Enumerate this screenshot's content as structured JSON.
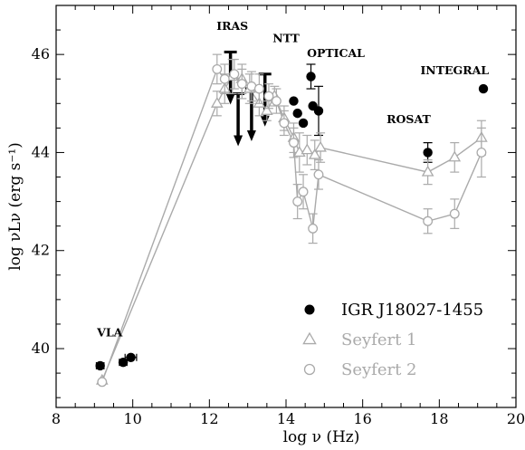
{
  "chart_data": {
    "type": "scatter",
    "xlabel": "log ν  (Hz)",
    "ylabel": "log νLν (erg s⁻¹)",
    "xlim": [
      8,
      20
    ],
    "ylim": [
      38.8,
      47
    ],
    "x_ticks": [
      8,
      10,
      12,
      14,
      16,
      18,
      20
    ],
    "y_ticks": [
      40,
      42,
      44,
      46
    ],
    "legend_position": "bottom-right",
    "colors": {
      "igr": "#000000",
      "seyfert": "#aaaaaa",
      "axes": "#000000"
    },
    "annotations": [
      {
        "text": "VLA",
        "x": 9.4,
        "y": 40.25
      },
      {
        "text": "IRAS",
        "x": 12.6,
        "y": 46.5
      },
      {
        "text": "NTT",
        "x": 14.0,
        "y": 46.25
      },
      {
        "text": "OPTICAL",
        "x": 15.3,
        "y": 45.95
      },
      {
        "text": "INTEGRAL",
        "x": 18.4,
        "y": 45.6
      },
      {
        "text": "ROSAT",
        "x": 17.2,
        "y": 44.6
      }
    ],
    "series": [
      {
        "name": "IGR J18027-1455",
        "marker": "filled-circle",
        "points": [
          {
            "x": 9.15,
            "y": 39.65,
            "xerr": 0.1
          },
          {
            "x": 9.75,
            "y": 39.72,
            "xerr": 0.1
          },
          {
            "x": 9.95,
            "y": 39.82,
            "xerr": 0.15
          },
          {
            "x": 14.2,
            "y": 45.05
          },
          {
            "x": 14.3,
            "y": 44.8
          },
          {
            "x": 14.45,
            "y": 44.6
          },
          {
            "x": 14.65,
            "y": 45.55,
            "yerr": 0.25
          },
          {
            "x": 14.7,
            "y": 44.95
          },
          {
            "x": 14.85,
            "y": 44.85,
            "yerr": 0.5
          },
          {
            "x": 17.7,
            "y": 44.0,
            "yerr": 0.2
          },
          {
            "x": 19.15,
            "y": 45.3
          }
        ],
        "upper_limits": [
          {
            "x": 12.55,
            "y": 46.05
          },
          {
            "x": 12.75,
            "y": 45.2
          },
          {
            "x": 13.1,
            "y": 45.3
          },
          {
            "x": 13.45,
            "y": 45.6
          }
        ]
      },
      {
        "name": "Seyfert 1",
        "marker": "open-triangle",
        "points": [
          {
            "x": 9.2,
            "y": 39.35
          },
          {
            "x": 12.2,
            "y": 45.0,
            "yerr": 0.25
          },
          {
            "x": 12.4,
            "y": 45.3,
            "yerr": 0.3
          },
          {
            "x": 12.6,
            "y": 45.55,
            "yerr": 0.35
          },
          {
            "x": 12.85,
            "y": 45.5,
            "yerr": 0.3
          },
          {
            "x": 13.05,
            "y": 45.3,
            "yerr": 0.3
          },
          {
            "x": 13.3,
            "y": 45.0,
            "yerr": 0.25
          },
          {
            "x": 13.5,
            "y": 44.85,
            "yerr": 0.2
          },
          {
            "x": 13.7,
            "y": 45.15,
            "yerr": 0.2
          },
          {
            "x": 13.95,
            "y": 44.7,
            "yerr": 0.25
          },
          {
            "x": 14.2,
            "y": 44.3,
            "yerr": 0.3
          },
          {
            "x": 14.35,
            "y": 44.0,
            "yerr": 0.4
          },
          {
            "x": 14.55,
            "y": 44.05,
            "yerr": 0.3
          },
          {
            "x": 14.75,
            "y": 43.95,
            "yerr": 0.3
          },
          {
            "x": 14.9,
            "y": 44.1,
            "yerr": 0.3
          },
          {
            "x": 17.7,
            "y": 43.6,
            "yerr": 0.25
          },
          {
            "x": 18.4,
            "y": 43.9,
            "yerr": 0.3
          },
          {
            "x": 19.1,
            "y": 44.3,
            "yerr": 0.35
          }
        ]
      },
      {
        "name": "Seyfert 2",
        "marker": "open-circle",
        "points": [
          {
            "x": 9.2,
            "y": 39.32
          },
          {
            "x": 12.2,
            "y": 45.7,
            "yerr": 0.3
          },
          {
            "x": 12.4,
            "y": 45.5,
            "yerr": 0.3
          },
          {
            "x": 12.65,
            "y": 45.6,
            "yerr": 0.3
          },
          {
            "x": 12.85,
            "y": 45.4,
            "yerr": 0.3
          },
          {
            "x": 13.1,
            "y": 45.35,
            "yerr": 0.3
          },
          {
            "x": 13.3,
            "y": 45.3,
            "yerr": 0.3
          },
          {
            "x": 13.55,
            "y": 45.15,
            "yerr": 0.25
          },
          {
            "x": 13.75,
            "y": 45.05,
            "yerr": 0.25
          },
          {
            "x": 13.95,
            "y": 44.6,
            "yerr": 0.25
          },
          {
            "x": 14.2,
            "y": 44.2,
            "yerr": 0.3
          },
          {
            "x": 14.3,
            "y": 43.0,
            "yerr": 0.35
          },
          {
            "x": 14.45,
            "y": 43.2,
            "yerr": 0.35
          },
          {
            "x": 14.7,
            "y": 42.45,
            "yerr": 0.3
          },
          {
            "x": 14.85,
            "y": 43.55,
            "yerr": 0.3
          },
          {
            "x": 17.7,
            "y": 42.6,
            "yerr": 0.25
          },
          {
            "x": 18.4,
            "y": 42.75,
            "yerr": 0.3
          },
          {
            "x": 19.1,
            "y": 44.0,
            "yerr": 0.5
          }
        ]
      }
    ]
  }
}
